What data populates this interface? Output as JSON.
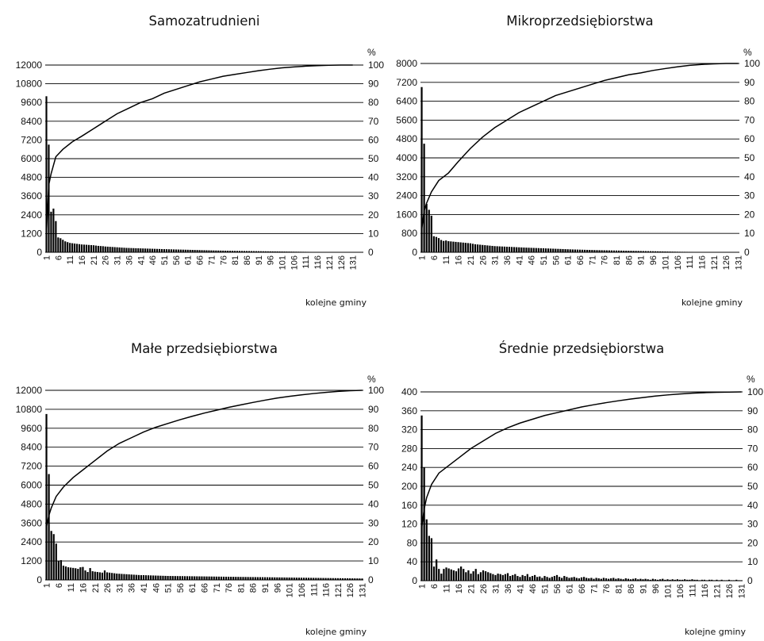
{
  "chart_data": [
    {
      "type": "bar",
      "title": "Samozatrudnieni",
      "xlabel": "kolejne gminy",
      "ylabel": "",
      "y2label": "%",
      "ylim": [
        0,
        12000
      ],
      "y_ticks": [
        0,
        1200,
        2400,
        3600,
        4800,
        6000,
        7200,
        8400,
        9600,
        10800,
        12000
      ],
      "y2lim": [
        0,
        100
      ],
      "y2_ticks": [
        0,
        10,
        20,
        30,
        40,
        50,
        60,
        70,
        80,
        90,
        100
      ],
      "x_ticks": [
        "1",
        "6",
        "11",
        "16",
        "21",
        "26",
        "31",
        "36",
        "41",
        "46",
        "51",
        "56",
        "61",
        "66",
        "71",
        "76",
        "81",
        "86",
        "91",
        "96",
        "101",
        "106",
        "111",
        "116",
        "121",
        "126",
        "131"
      ],
      "grid": "horizontal",
      "series": [
        {
          "values": [
            10000,
            6900,
            2600,
            2800,
            2000,
            950,
            900,
            800,
            700,
            650,
            600,
            580,
            560,
            540,
            520,
            500,
            490,
            480,
            470,
            460,
            450,
            430,
            410,
            400,
            390,
            370,
            360,
            350,
            340,
            330,
            320,
            310,
            300,
            290,
            280,
            275,
            270,
            265,
            260,
            255,
            250,
            245,
            240,
            235,
            230,
            225,
            220,
            215,
            210,
            205,
            200,
            196,
            192,
            188,
            184,
            180,
            176,
            172,
            168,
            164,
            160,
            156,
            152,
            148,
            144,
            140,
            136,
            132,
            128,
            124,
            120,
            117,
            114,
            111,
            108,
            105,
            102,
            99,
            96,
            93,
            90,
            88,
            86,
            84,
            82,
            80,
            78,
            76,
            74,
            72,
            70,
            68,
            66,
            64,
            62,
            60,
            58,
            56,
            54,
            52,
            50,
            48,
            46,
            44,
            42,
            40,
            38,
            36,
            34,
            32,
            30,
            28,
            26,
            24,
            22,
            21,
            20,
            19,
            18,
            17,
            16,
            15,
            14,
            13,
            12,
            11,
            10,
            9,
            8,
            7,
            6,
            5,
            4,
            3,
            2
          ]
        },
        {
          "x": [
            1,
            2,
            3,
            5,
            8,
            12,
            16,
            21,
            26,
            31,
            36,
            41,
            46,
            51,
            56,
            61,
            66,
            71,
            76,
            81,
            86,
            91,
            96,
            101,
            106,
            111,
            116,
            121,
            126,
            131
          ],
          "values": [
            10,
            36,
            42,
            51,
            55,
            59,
            62,
            66,
            70,
            74,
            77,
            80,
            82,
            85,
            87,
            89,
            91,
            92.5,
            94,
            95,
            96,
            97,
            97.8,
            98.5,
            99,
            99.4,
            99.7,
            99.9,
            100,
            100
          ]
        }
      ]
    },
    {
      "type": "bar",
      "title": "Mikroprzedsiębiorstwa",
      "xlabel": "kolejne gminy",
      "ylabel": "",
      "y2label": "%",
      "ylim": [
        0,
        8000
      ],
      "y_ticks": [
        0,
        800,
        1600,
        2400,
        3200,
        4000,
        4800,
        5600,
        6400,
        7200,
        8000
      ],
      "y2lim": [
        0,
        100
      ],
      "y2_ticks": [
        0,
        10,
        20,
        30,
        40,
        50,
        60,
        70,
        80,
        90,
        100
      ],
      "x_ticks": [
        "1",
        "6",
        "11",
        "16",
        "21",
        "26",
        "31",
        "36",
        "41",
        "46",
        "51",
        "56",
        "61",
        "66",
        "71",
        "76",
        "81",
        "86",
        "91",
        "96",
        "101",
        "106",
        "111",
        "116",
        "121",
        "126",
        "131"
      ],
      "grid": "horizontal",
      "series": [
        {
          "values": [
            7000,
            4600,
            2050,
            1800,
            1550,
            680,
            650,
            600,
            520,
            480,
            500,
            470,
            460,
            450,
            440,
            430,
            420,
            410,
            400,
            390,
            380,
            360,
            340,
            330,
            320,
            310,
            300,
            290,
            280,
            270,
            260,
            255,
            250,
            245,
            240,
            235,
            230,
            225,
            220,
            215,
            210,
            205,
            200,
            196,
            192,
            188,
            184,
            180,
            176,
            172,
            168,
            164,
            160,
            156,
            152,
            148,
            144,
            140,
            136,
            132,
            128,
            124,
            120,
            117,
            114,
            111,
            108,
            105,
            102,
            99,
            96,
            93,
            90,
            88,
            86,
            84,
            82,
            80,
            78,
            76,
            74,
            72,
            70,
            68,
            66,
            64,
            62,
            60,
            58,
            56,
            54,
            52,
            50,
            48,
            46,
            44,
            42,
            40,
            38,
            36,
            34,
            32,
            30,
            28,
            26,
            24,
            22,
            21,
            20,
            19,
            18,
            17,
            16,
            15,
            14,
            13,
            12,
            11,
            10,
            9,
            8,
            7,
            6,
            5,
            4,
            3,
            2,
            2,
            2,
            2,
            2
          ]
        },
        {
          "x": [
            1,
            2,
            3,
            5,
            8,
            12,
            16,
            21,
            26,
            31,
            36,
            41,
            46,
            51,
            56,
            61,
            66,
            71,
            76,
            81,
            86,
            91,
            96,
            101,
            106,
            111,
            116,
            121,
            126,
            131
          ],
          "values": [
            12,
            22,
            26,
            32,
            38,
            42,
            48,
            55,
            61,
            66,
            70,
            74,
            77,
            80,
            83,
            85,
            87,
            89,
            91,
            92.5,
            94,
            95,
            96.3,
            97.3,
            98.2,
            99,
            99.5,
            99.8,
            100,
            100
          ]
        }
      ]
    },
    {
      "type": "bar",
      "title": "Małe przedsiębiorstwa",
      "xlabel": "kolejne gminy",
      "ylabel": "",
      "y2label": "%",
      "ylim": [
        0,
        12000
      ],
      "y_ticks": [
        0,
        1200,
        2400,
        3600,
        4800,
        6000,
        7200,
        8400,
        9600,
        10800,
        12000
      ],
      "y2lim": [
        0,
        100
      ],
      "y2_ticks": [
        0,
        10,
        20,
        30,
        40,
        50,
        60,
        70,
        80,
        90,
        100
      ],
      "x_ticks": [
        "1",
        "6",
        "11",
        "16",
        "21",
        "26",
        "31",
        "36",
        "41",
        "46",
        "51",
        "56",
        "61",
        "66",
        "71",
        "76",
        "81",
        "86",
        "91",
        "96",
        "101",
        "106",
        "111",
        "116",
        "121",
        "126",
        "131"
      ],
      "grid": "horizontal",
      "series": [
        {
          "values": [
            10500,
            6700,
            3100,
            2900,
            2300,
            1200,
            1250,
            900,
            850,
            800,
            780,
            760,
            740,
            700,
            800,
            820,
            600,
            500,
            750,
            550,
            520,
            500,
            480,
            460,
            600,
            480,
            460,
            440,
            420,
            400,
            390,
            380,
            370,
            360,
            350,
            340,
            330,
            320,
            310,
            300,
            300,
            295,
            290,
            285,
            280,
            275,
            270,
            265,
            260,
            255,
            250,
            248,
            246,
            244,
            242,
            240,
            238,
            236,
            234,
            232,
            230,
            228,
            226,
            224,
            222,
            220,
            218,
            216,
            214,
            212,
            210,
            208,
            206,
            204,
            202,
            200,
            198,
            196,
            194,
            192,
            190,
            188,
            186,
            184,
            182,
            180,
            178,
            176,
            174,
            172,
            170,
            168,
            166,
            164,
            162,
            160,
            158,
            156,
            154,
            152,
            150,
            148,
            146,
            144,
            142,
            140,
            138,
            136,
            134,
            132,
            130,
            128,
            126,
            124,
            122,
            120,
            118,
            116,
            114,
            112,
            110,
            108,
            106,
            104,
            102,
            100,
            98,
            96,
            94,
            92,
            90
          ]
        },
        {
          "x": [
            1,
            2,
            3,
            5,
            8,
            12,
            16,
            21,
            26,
            31,
            36,
            41,
            46,
            51,
            56,
            61,
            66,
            71,
            76,
            81,
            86,
            91,
            96,
            101,
            106,
            111,
            116,
            121,
            126,
            131
          ],
          "values": [
            28,
            34,
            38,
            44,
            49,
            54,
            58,
            63,
            68,
            72,
            75,
            78,
            80.5,
            82.5,
            84.5,
            86.3,
            88,
            89.5,
            91,
            92.3,
            93.6,
            94.8,
            95.9,
            96.8,
            97.6,
            98.3,
            98.9,
            99.4,
            99.8,
            100
          ]
        }
      ]
    },
    {
      "type": "bar",
      "title": "Średnie przedsiębiorstwa",
      "xlabel": "kolejne gminy",
      "ylabel": "",
      "y2label": "%",
      "ylim": [
        0,
        400
      ],
      "y_ticks": [
        0,
        40,
        80,
        120,
        160,
        200,
        240,
        280,
        320,
        360,
        400
      ],
      "y2lim": [
        0,
        100
      ],
      "y2_ticks": [
        0,
        10,
        20,
        30,
        40,
        50,
        60,
        70,
        80,
        90,
        100
      ],
      "x_ticks": [
        "1",
        "6",
        "11",
        "16",
        "21",
        "26",
        "31",
        "36",
        "41",
        "46",
        "51",
        "56",
        "61",
        "66",
        "71",
        "76",
        "81",
        "86",
        "91",
        "96",
        "101",
        "106",
        "111",
        "116",
        "121",
        "126",
        "131"
      ],
      "grid": "horizontal",
      "series": [
        {
          "values": [
            350,
            240,
            130,
            95,
            90,
            30,
            45,
            25,
            15,
            25,
            28,
            26,
            24,
            22,
            20,
            26,
            30,
            25,
            18,
            22,
            15,
            20,
            25,
            14,
            18,
            22,
            20,
            18,
            16,
            14,
            12,
            15,
            14,
            12,
            14,
            16,
            10,
            12,
            14,
            10,
            8,
            12,
            10,
            14,
            8,
            10,
            12,
            8,
            9,
            6,
            10,
            8,
            6,
            8,
            10,
            12,
            8,
            6,
            10,
            8,
            6,
            7,
            8,
            6,
            5,
            7,
            8,
            6,
            5,
            6,
            4,
            6,
            5,
            4,
            6,
            5,
            4,
            5,
            6,
            4,
            5,
            4,
            3,
            5,
            4,
            3,
            4,
            5,
            3,
            4,
            3,
            4,
            3,
            2,
            4,
            3,
            2,
            3,
            4,
            2,
            3,
            2,
            3,
            2,
            3,
            2,
            2,
            3,
            2,
            2,
            3,
            2,
            2,
            1,
            2,
            2,
            1,
            2,
            2,
            1,
            2,
            1,
            2,
            1,
            1,
            2,
            1,
            1,
            2,
            1,
            1
          ]
        },
        {
          "x": [
            1,
            2,
            3,
            5,
            8,
            12,
            16,
            21,
            26,
            31,
            36,
            41,
            46,
            51,
            56,
            61,
            66,
            71,
            76,
            81,
            86,
            91,
            96,
            101,
            106,
            111,
            116,
            121,
            126,
            131
          ],
          "values": [
            28,
            38,
            44,
            51,
            57,
            61,
            65,
            70,
            74,
            78,
            81,
            83.5,
            85.5,
            87.5,
            89,
            90.5,
            92,
            93.2,
            94.3,
            95.3,
            96.2,
            97,
            97.8,
            98.4,
            98.9,
            99.3,
            99.6,
            99.8,
            99.9,
            100
          ]
        }
      ]
    }
  ]
}
